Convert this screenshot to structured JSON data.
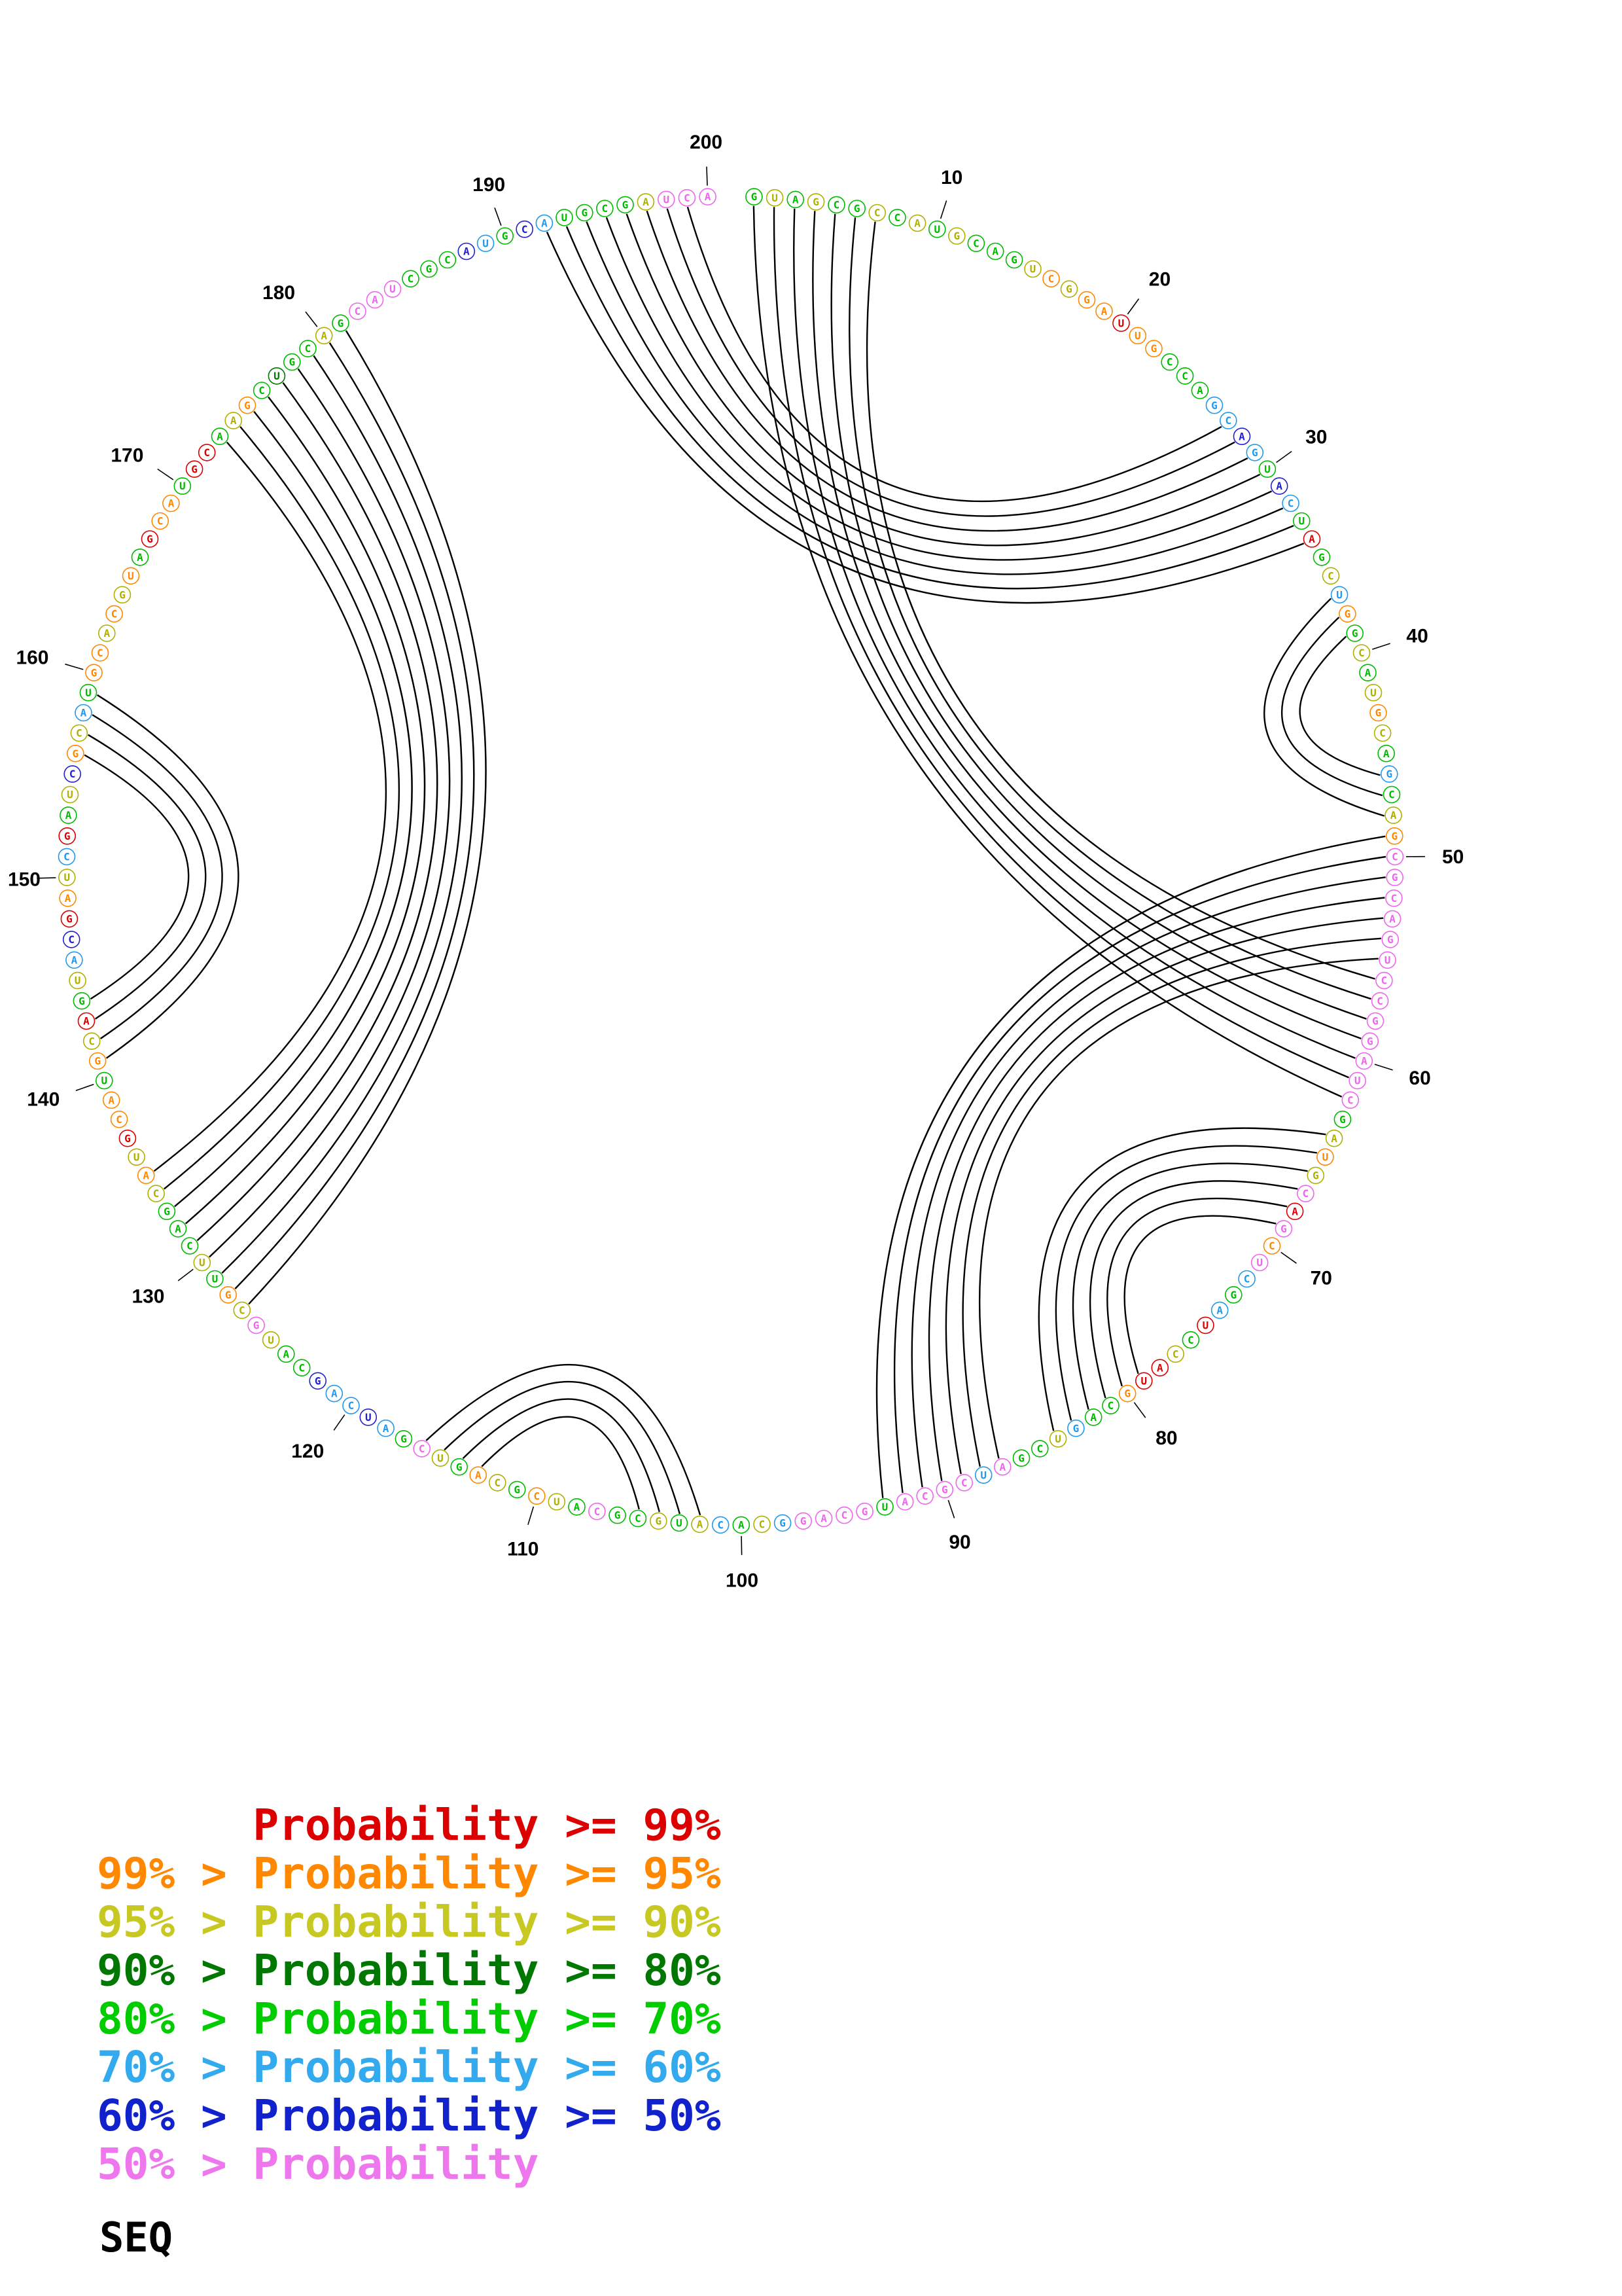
{
  "plot": {
    "length": 200,
    "gap_degrees": 4,
    "tick_interval": 10,
    "ticks": [
      10,
      20,
      30,
      40,
      50,
      60,
      70,
      80,
      90,
      100,
      110,
      120,
      130,
      140,
      150,
      160,
      170,
      180,
      190,
      200
    ],
    "arc_color": "#000000",
    "sequence": "GUAGCGCCAUGCAGUCGGAUUGCCAGCAGUACUAGCUGGCAUGCAGCAGCGCAGUCCGGAUCGAUGCAGCUCGAUCCAUGCAGUCGAUCGCAUGCAGGCACAUGCGCAUCGCAGUCGAUCAGCAUGCGUUCAGCAUGCAUGCAGUACGAUCGAUCGCAUGCACGUAGCAUGCAAGCUGCAGCAUCGCAUGCAUGCGAUCA",
    "colors": "gygyggygygygggyoyooroogggccbcgbcgrgycogygyoygcgyopppppppppppppgyoyprpopcgcrgyrroggcyggpcppppgppppcygcygyggpgyogyogypgcbccbggypyogygggyoyroogoyrgycbroycrgyboycgooyoyogroogrrgyogdggygpppgggbcgbcggggyppp",
    "palette": {
      "r": "#dd0000",
      "o": "#ff8800",
      "y": "#b0b000",
      "d": "#007700",
      "g": "#00bb00",
      "c": "#2299ee",
      "b": "#2222cc",
      "p": "#ee66ee"
    },
    "pairs": [
      [
        192,
        34
      ],
      [
        193,
        33
      ],
      [
        194,
        32
      ],
      [
        195,
        31
      ],
      [
        196,
        30
      ],
      [
        197,
        29
      ],
      [
        198,
        28
      ],
      [
        199,
        27
      ],
      [
        1,
        62
      ],
      [
        2,
        61
      ],
      [
        3,
        60
      ],
      [
        4,
        59
      ],
      [
        5,
        58
      ],
      [
        6,
        57
      ],
      [
        7,
        56
      ],
      [
        49,
        93
      ],
      [
        50,
        92
      ],
      [
        51,
        91
      ],
      [
        52,
        90
      ],
      [
        53,
        89
      ],
      [
        54,
        88
      ],
      [
        55,
        87
      ],
      [
        37,
        48
      ],
      [
        38,
        47
      ],
      [
        39,
        46
      ],
      [
        64,
        84
      ],
      [
        65,
        83
      ],
      [
        66,
        82
      ],
      [
        67,
        81
      ],
      [
        68,
        80
      ],
      [
        69,
        79
      ],
      [
        102,
        116
      ],
      [
        103,
        115
      ],
      [
        104,
        114
      ],
      [
        105,
        113
      ],
      [
        127,
        181
      ],
      [
        128,
        180
      ],
      [
        129,
        179
      ],
      [
        130,
        178
      ],
      [
        131,
        177
      ],
      [
        132,
        176
      ],
      [
        133,
        175
      ],
      [
        134,
        174
      ],
      [
        135,
        173
      ],
      [
        141,
        159
      ],
      [
        142,
        158
      ],
      [
        143,
        157
      ],
      [
        144,
        156
      ]
    ]
  },
  "legend": {
    "rows": [
      {
        "text": "      Probability >= 99%",
        "color": "#dd0000"
      },
      {
        "text": "99% > Probability >= 95%",
        "color": "#ff8800"
      },
      {
        "text": "95% > Probability >= 90%",
        "color": "#c8c822"
      },
      {
        "text": "90% > Probability >= 80%",
        "color": "#007700"
      },
      {
        "text": "80% > Probability >= 70%",
        "color": "#00cc00"
      },
      {
        "text": "70% > Probability >= 60%",
        "color": "#33aaee"
      },
      {
        "text": "60% > Probability >= 50%",
        "color": "#1122cc"
      },
      {
        "text": "50% > Probability",
        "color": "#ee77ee"
      }
    ],
    "footer": "SEQ"
  }
}
